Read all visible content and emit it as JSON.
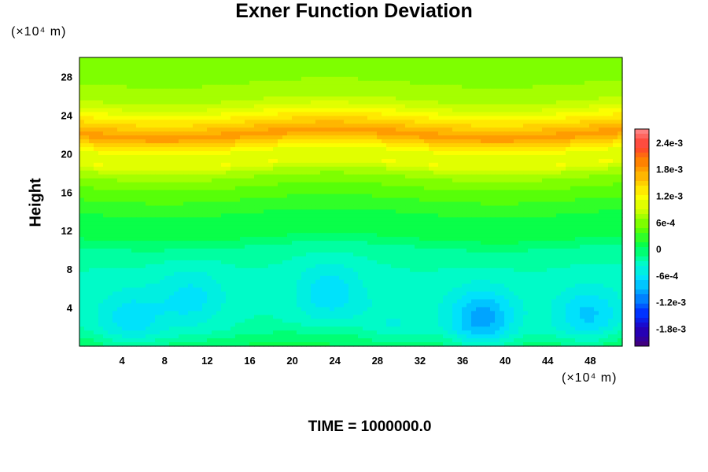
{
  "chart_data": {
    "type": "heatmap",
    "title": "Exner Function Deviation",
    "ylabel": "Height",
    "y_unit": "(×10⁴ m)",
    "x_unit": "(×10⁴ m)",
    "annotation": "TIME = 1000000.0",
    "xlim": [
      0,
      51
    ],
    "ylim": [
      0,
      30
    ],
    "x_ticks": [
      4,
      8,
      12,
      16,
      20,
      24,
      28,
      32,
      36,
      40,
      44,
      48
    ],
    "y_ticks": [
      4,
      8,
      12,
      16,
      20,
      24,
      28
    ],
    "x_tick_labels": [
      "4",
      "8",
      "12",
      "16",
      "20",
      "24",
      "28",
      "32",
      "36",
      "40",
      "44",
      "48"
    ],
    "y_tick_labels": [
      "4",
      "8",
      "12",
      "16",
      "20",
      "24",
      "28"
    ],
    "colorbar": {
      "min": -0.0022,
      "max": 0.0027,
      "ticks": [
        0.0024,
        0.0018,
        0.0012,
        0.0006,
        0,
        -0.0006,
        -0.0012,
        -0.0018
      ],
      "tick_labels": [
        "2.4e-3",
        "1.8e-3",
        "1.2e-3",
        "6e-4",
        "0",
        "-6e-4",
        "-1.2e-3",
        "-1.8e-3"
      ]
    },
    "vertical_profile": {
      "height": [
        0,
        2,
        4,
        6,
        8,
        10,
        11,
        12,
        13,
        14,
        16,
        18,
        19,
        20,
        21,
        22,
        23,
        24,
        25,
        26,
        28,
        30
      ],
      "value": [
        5e-05,
        -0.00025,
        -0.0003,
        -0.0003,
        -0.00028,
        -0.0002,
        0.0,
        0.0001,
        6e-05,
        0.0002,
        0.0004,
        0.0007,
        0.0011,
        0.001,
        0.0014,
        0.0018,
        0.0015,
        0.0012,
        0.0009,
        0.0007,
        0.0006,
        0.0006
      ]
    },
    "anomalies": [
      {
        "x": 4.8,
        "y": 2.7,
        "amplitude": -0.0004
      },
      {
        "x": 10.5,
        "y": 5.0,
        "amplitude": -0.00035
      },
      {
        "x": 23.5,
        "y": 5.5,
        "amplitude": -0.0004
      },
      {
        "x": 29.5,
        "y": 1.5,
        "amplitude": -0.0002
      },
      {
        "x": 37.8,
        "y": 2.8,
        "amplitude": -0.0007
      },
      {
        "x": 47.8,
        "y": 3.0,
        "amplitude": -0.0005
      }
    ],
    "colors": [
      "#400080",
      "#2000c0",
      "#0030ff",
      "#0090ff",
      "#00e0ff",
      "#00ffc0",
      "#00ff50",
      "#60ff00",
      "#c0ff00",
      "#ffff00",
      "#ffc000",
      "#ff8000",
      "#ff4030",
      "#ff8080"
    ]
  }
}
